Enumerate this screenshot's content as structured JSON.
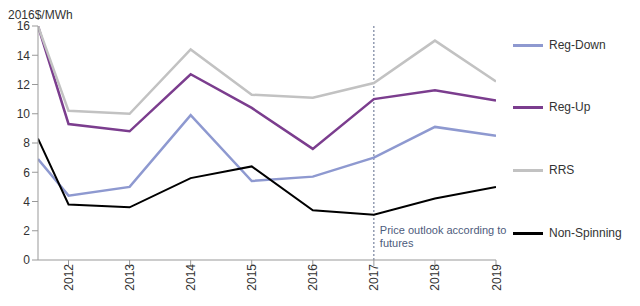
{
  "chart_data": {
    "type": "line",
    "y_label": "2016$/MWh",
    "x": [
      2011.5,
      2012,
      2013,
      2014,
      2015,
      2016,
      2017,
      2018,
      2019
    ],
    "xlim": [
      2011.5,
      2019
    ],
    "xticks": [
      2012,
      2013,
      2014,
      2015,
      2016,
      2017,
      2018,
      2019
    ],
    "ylim": [
      0,
      16
    ],
    "yticks": [
      0,
      2,
      4,
      6,
      8,
      10,
      12,
      14,
      16
    ],
    "grid": false,
    "legend": "right",
    "annotation": {
      "x": 2017,
      "text": "Price outlook according to futures"
    },
    "series": [
      {
        "name": "Reg-Down",
        "color": "#8e99d0",
        "values": [
          6.9,
          4.4,
          5.0,
          9.9,
          5.4,
          5.7,
          7.0,
          9.1,
          8.5
        ]
      },
      {
        "name": "Reg-Up",
        "color": "#7b3d8e",
        "values": [
          16.0,
          9.3,
          8.8,
          12.7,
          10.4,
          7.6,
          11.0,
          11.6,
          10.9
        ]
      },
      {
        "name": "RRS",
        "color": "#c2c2c2",
        "values": [
          16.0,
          10.2,
          10.0,
          14.4,
          11.3,
          11.1,
          12.1,
          15.0,
          12.2
        ]
      },
      {
        "name": "Non-Spinning",
        "color": "#000000",
        "values": [
          8.3,
          3.8,
          3.6,
          5.6,
          6.4,
          3.4,
          3.1,
          4.2,
          5.0
        ]
      }
    ]
  }
}
